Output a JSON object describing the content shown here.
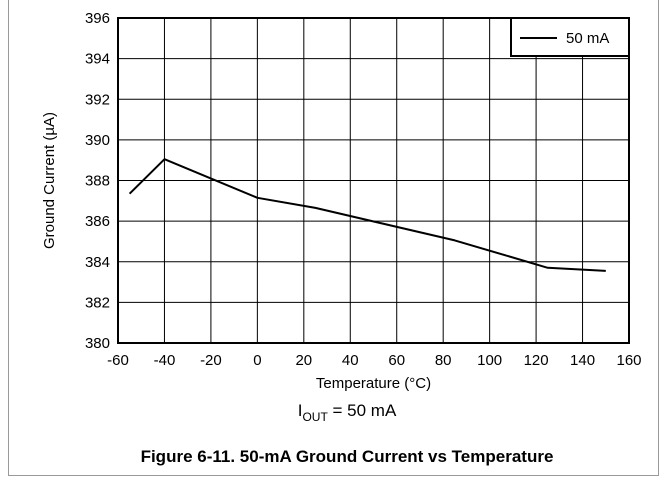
{
  "chart_data": {
    "type": "line",
    "xlabel": "Temperature (°C)",
    "ylabel": "Ground Current (µA)",
    "xlim": [
      -60,
      160
    ],
    "ylim": [
      380,
      396
    ],
    "x_ticks": [
      -60,
      -40,
      -20,
      0,
      20,
      40,
      60,
      80,
      100,
      120,
      140,
      160
    ],
    "y_ticks": [
      380,
      382,
      384,
      386,
      388,
      390,
      392,
      394,
      396
    ],
    "grid": true,
    "legend_position": "top-right",
    "series": [
      {
        "name": "50 mA",
        "color": "#000000",
        "x": [
          -55,
          -40,
          0,
          25,
          85,
          125,
          150
        ],
        "y": [
          387.35,
          389.05,
          387.15,
          386.65,
          385.05,
          383.7,
          383.55
        ]
      }
    ]
  },
  "condition": {
    "prefix": "I",
    "subscript": "OUT",
    "suffix": " = 50 mA"
  },
  "caption": "Figure 6-11. 50-mA Ground Current vs Temperature"
}
